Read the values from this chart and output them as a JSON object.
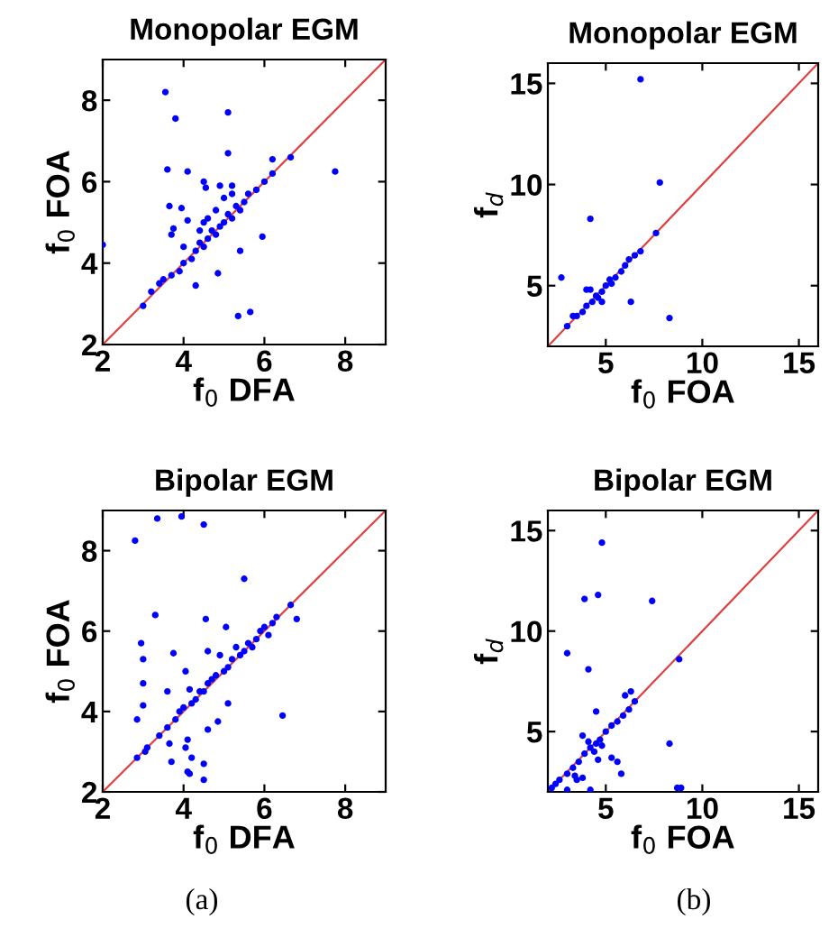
{
  "chart_data": [
    {
      "type": "scatter",
      "title": "Monopolar EGM",
      "xlabel": "f$_{0}$ DFA",
      "ylabel": "f$_{0}$ FOA",
      "xlim": [
        2,
        9
      ],
      "ylim": [
        2,
        9
      ],
      "xticks": [
        2,
        4,
        6,
        8
      ],
      "yticks": [
        2,
        4,
        6,
        8
      ],
      "grid": false,
      "marker": "circle",
      "series": [
        {
          "color": "#0000ff",
          "x": [
            3.55,
            3.8,
            5.1,
            5.1,
            3.6,
            4.1,
            7.75,
            6.65,
            6.2,
            2.0,
            3.0,
            5.35,
            5.65,
            4.3,
            4.85,
            5.95,
            3.65,
            4.5,
            4.55,
            3.95,
            4.1,
            3.75,
            3.7,
            4.0,
            5.4,
            3.2,
            3.4,
            3.5,
            3.7,
            3.9,
            4.0,
            4.2,
            4.3,
            4.4,
            4.5,
            4.6,
            4.7,
            4.8,
            4.9,
            5.0,
            5.1,
            5.2,
            5.3,
            5.4,
            5.5,
            5.6,
            5.8,
            6.0,
            6.2,
            4.6,
            4.8,
            5.0,
            5.2,
            4.9,
            5.2,
            4.4,
            4.5
          ],
          "values": [
            8.2,
            7.55,
            7.7,
            6.7,
            6.3,
            6.25,
            6.25,
            6.6,
            6.55,
            4.45,
            2.95,
            2.7,
            2.8,
            3.45,
            3.75,
            4.65,
            5.4,
            6.0,
            5.85,
            5.35,
            5.05,
            4.85,
            4.7,
            4.4,
            4.3,
            3.3,
            3.5,
            3.6,
            3.7,
            3.8,
            4.0,
            4.1,
            4.3,
            4.5,
            4.4,
            4.6,
            4.8,
            4.7,
            4.9,
            5.0,
            5.2,
            5.1,
            5.4,
            5.3,
            5.5,
            5.7,
            5.8,
            6.0,
            6.2,
            5.1,
            5.3,
            5.6,
            5.9,
            5.9,
            5.7,
            4.8,
            5.0
          ]
        },
        {
          "type": "line",
          "color": "#e04040",
          "marker": "none",
          "x": [
            2,
            9
          ],
          "values": [
            2,
            9
          ]
        }
      ]
    },
    {
      "type": "scatter",
      "title": "Monopolar EGM",
      "xlabel": "f$_{0}$ FOA",
      "ylabel": "f$_{d}$",
      "xlim": [
        2,
        16
      ],
      "ylim": [
        2,
        16
      ],
      "xticks": [
        5,
        10,
        15
      ],
      "yticks": [
        5,
        10,
        15
      ],
      "grid": false,
      "marker": "circle",
      "series": [
        {
          "color": "#0000ff",
          "x": [
            6.8,
            7.8,
            4.2,
            7.6,
            2.7,
            4.0,
            4.2,
            4.8,
            6.3,
            8.3,
            3.0,
            3.5,
            3.8,
            4.0,
            4.3,
            4.5,
            4.8,
            5.0,
            5.2,
            5.5,
            5.8,
            6.0,
            6.2,
            6.5,
            6.8,
            4.6,
            5.3,
            3.3
          ],
          "values": [
            15.2,
            10.1,
            8.3,
            7.6,
            5.4,
            4.8,
            4.8,
            4.2,
            4.2,
            3.4,
            3.0,
            3.5,
            3.7,
            4.0,
            4.2,
            4.5,
            4.7,
            5.0,
            5.3,
            5.4,
            5.7,
            6.0,
            6.3,
            6.5,
            6.7,
            4.4,
            5.1,
            3.5
          ]
        },
        {
          "type": "line",
          "color": "#e04040",
          "marker": "none",
          "x": [
            2,
            16
          ],
          "values": [
            2,
            16
          ]
        }
      ]
    },
    {
      "type": "scatter",
      "title": "Bipolar EGM",
      "xlabel": "f$_{0}$ DFA",
      "ylabel": "f$_{0}$ FOA",
      "xlim": [
        2,
        9
      ],
      "ylim": [
        2,
        9
      ],
      "xticks": [
        2,
        4,
        6,
        8
      ],
      "yticks": [
        2,
        4,
        6,
        8
      ],
      "grid": false,
      "marker": "circle",
      "annotations": [
        "(a)"
      ],
      "series": [
        {
          "color": "#0000ff",
          "x": [
            2.8,
            3.35,
            3.95,
            4.5,
            5.5,
            3.3,
            4.55,
            5.05,
            2.95,
            3.0,
            3.75,
            3.0,
            2.85,
            3.0,
            6.45,
            6.8,
            6.65,
            3.1,
            3.05,
            2.85,
            3.65,
            3.7,
            4.1,
            4.15,
            4.5,
            4.5,
            4.2,
            4.05,
            4.6,
            4.1,
            4.85,
            5.1,
            4.15,
            4.05,
            3.6,
            4.6,
            4.9,
            5.3,
            4.4,
            3.4,
            3.6,
            3.8,
            3.9,
            4.0,
            4.2,
            4.3,
            4.5,
            4.6,
            4.7,
            4.8,
            5.0,
            5.1,
            5.2,
            5.4,
            5.5,
            5.6,
            5.8,
            5.9,
            6.0,
            6.2,
            6.3,
            6.1,
            5.7
          ],
          "values": [
            8.25,
            8.8,
            8.85,
            8.65,
            7.3,
            6.4,
            6.3,
            6.1,
            5.7,
            5.3,
            5.45,
            4.7,
            3.8,
            4.15,
            3.9,
            6.3,
            6.65,
            3.1,
            3.0,
            2.85,
            3.2,
            2.75,
            2.5,
            2.45,
            2.3,
            2.7,
            2.85,
            3.1,
            3.55,
            3.3,
            3.75,
            4.2,
            4.55,
            5.0,
            4.5,
            5.5,
            5.4,
            5.6,
            4.5,
            3.4,
            3.6,
            3.8,
            4.0,
            4.1,
            4.2,
            4.3,
            4.5,
            4.7,
            4.8,
            4.9,
            5.0,
            5.1,
            5.3,
            5.4,
            5.5,
            5.7,
            5.8,
            6.0,
            6.1,
            6.2,
            6.35,
            5.9,
            5.6
          ]
        },
        {
          "type": "line",
          "color": "#e04040",
          "marker": "none",
          "x": [
            2,
            9
          ],
          "values": [
            2,
            9
          ]
        }
      ]
    },
    {
      "type": "scatter",
      "title": "Bipolar EGM",
      "xlabel": "f$_{0}$ FOA",
      "ylabel": "f$_{d}$",
      "xlim": [
        2,
        16
      ],
      "ylim": [
        2,
        16
      ],
      "xticks": [
        5,
        10,
        15
      ],
      "yticks": [
        5,
        10,
        15
      ],
      "grid": false,
      "marker": "circle",
      "annotations": [
        "(b)"
      ],
      "series": [
        {
          "color": "#0000ff",
          "x": [
            4.8,
            3.9,
            4.6,
            7.4,
            3.0,
            4.1,
            8.8,
            4.5,
            6.0,
            6.3,
            8.3,
            8.7,
            8.9,
            3.0,
            2.4,
            4.2,
            3.4,
            3.8,
            3.5,
            5.3,
            5.6,
            5.8,
            4.6,
            3.8,
            4.1,
            2.2,
            2.6,
            3.0,
            3.3,
            3.6,
            3.9,
            4.2,
            4.5,
            4.7,
            5.0,
            5.3,
            5.6,
            5.9,
            6.2,
            6.5,
            4.4,
            4.8
          ],
          "values": [
            14.4,
            11.6,
            11.8,
            11.5,
            8.9,
            8.1,
            8.6,
            6.0,
            6.8,
            7.0,
            4.4,
            2.2,
            2.2,
            2.1,
            2.4,
            2.1,
            2.8,
            2.7,
            2.6,
            3.7,
            3.5,
            2.9,
            3.6,
            4.8,
            4.5,
            2.2,
            2.6,
            2.9,
            3.2,
            3.5,
            3.9,
            4.2,
            4.4,
            4.6,
            5.0,
            5.3,
            5.5,
            5.8,
            6.1,
            6.5,
            4.0,
            4.3
          ]
        },
        {
          "type": "line",
          "color": "#e04040",
          "marker": "none",
          "x": [
            2,
            16
          ],
          "values": [
            2,
            16
          ]
        }
      ]
    }
  ]
}
